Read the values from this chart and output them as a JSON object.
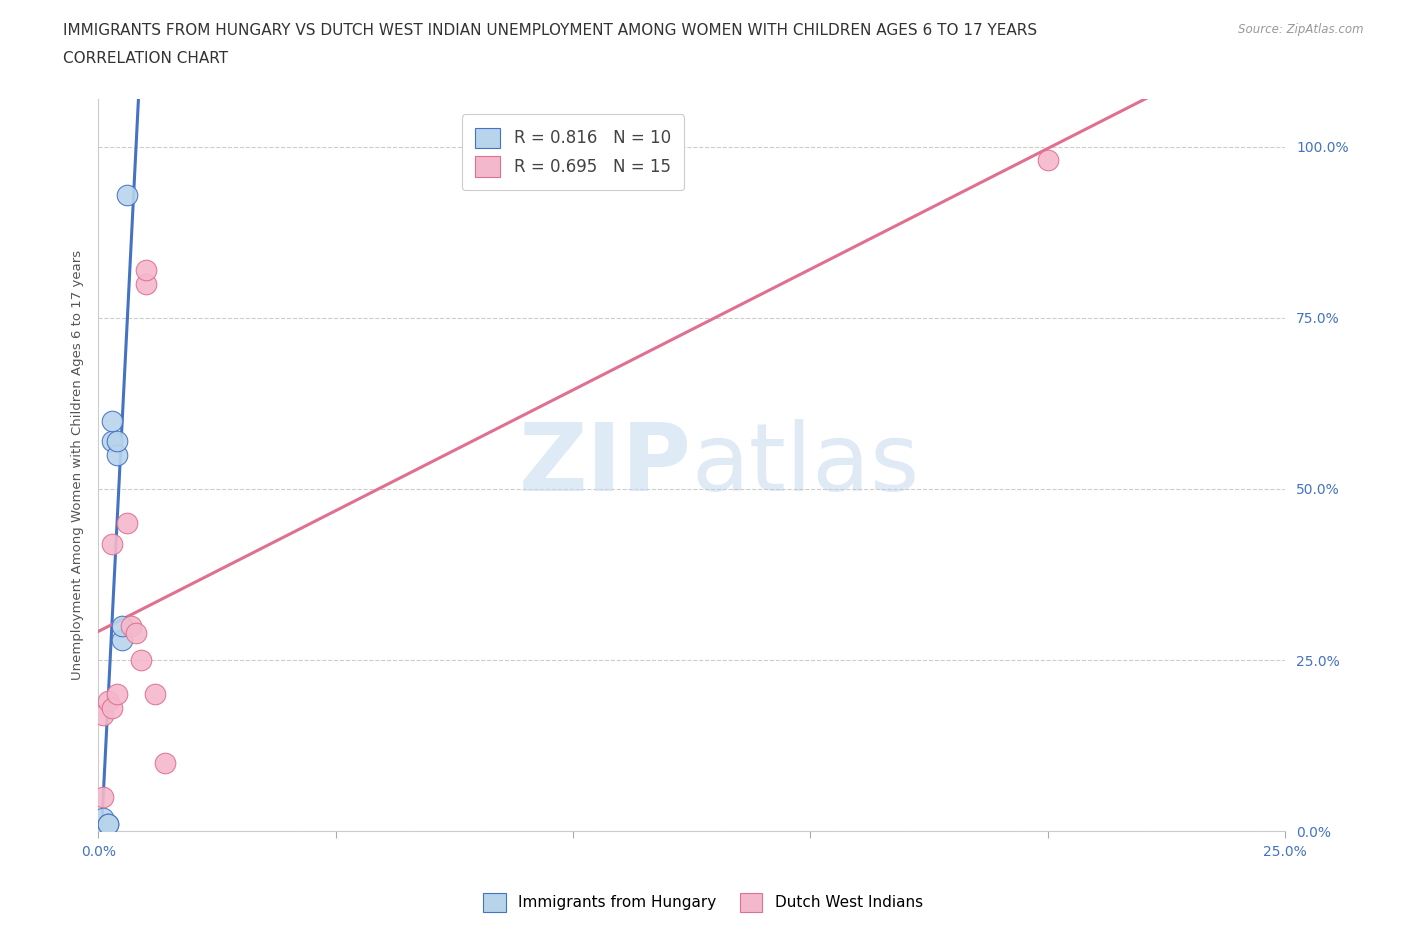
{
  "title_line1": "IMMIGRANTS FROM HUNGARY VS DUTCH WEST INDIAN UNEMPLOYMENT AMONG WOMEN WITH CHILDREN AGES 6 TO 17 YEARS",
  "title_line2": "CORRELATION CHART",
  "source": "Source: ZipAtlas.com",
  "ylabel": "Unemployment Among Women with Children Ages 6 to 17 years",
  "xlim": [
    0.0,
    0.25
  ],
  "ylim": [
    0.0,
    1.07
  ],
  "xticks": [
    0.0,
    0.05,
    0.1,
    0.15,
    0.2,
    0.25
  ],
  "yticks": [
    0.0,
    0.25,
    0.5,
    0.75,
    1.0
  ],
  "xtick_labels": [
    "0.0%",
    "",
    "",
    "",
    "",
    "25.0%"
  ],
  "ytick_labels": [
    "0.0%",
    "25.0%",
    "50.0%",
    "75.0%",
    "100.0%"
  ],
  "watermark_zip": "ZIP",
  "watermark_atlas": "atlas",
  "hungary_R": "0.816",
  "hungary_N": "10",
  "dutch_R": "0.695",
  "dutch_N": "15",
  "hungary_color": "#b8d4eb",
  "hungary_line_color": "#4472c4",
  "dutch_color": "#f4b8cc",
  "dutch_line_color": "#e07090",
  "hungary_x": [
    0.001,
    0.002,
    0.002,
    0.003,
    0.003,
    0.004,
    0.004,
    0.005,
    0.005,
    0.006
  ],
  "hungary_y": [
    0.02,
    0.01,
    0.01,
    0.57,
    0.6,
    0.55,
    0.57,
    0.28,
    0.3,
    0.93
  ],
  "dutch_x": [
    0.001,
    0.001,
    0.002,
    0.003,
    0.003,
    0.004,
    0.006,
    0.007,
    0.008,
    0.009,
    0.01,
    0.01,
    0.012,
    0.014,
    0.2
  ],
  "dutch_y": [
    0.05,
    0.17,
    0.19,
    0.18,
    0.42,
    0.2,
    0.45,
    0.3,
    0.29,
    0.25,
    0.8,
    0.82,
    0.2,
    0.1,
    0.98
  ],
  "background_color": "#ffffff",
  "grid_color": "#cccccc",
  "title_fontsize": 11,
  "axis_label_fontsize": 9.5,
  "tick_fontsize": 10,
  "legend_fontsize": 12
}
